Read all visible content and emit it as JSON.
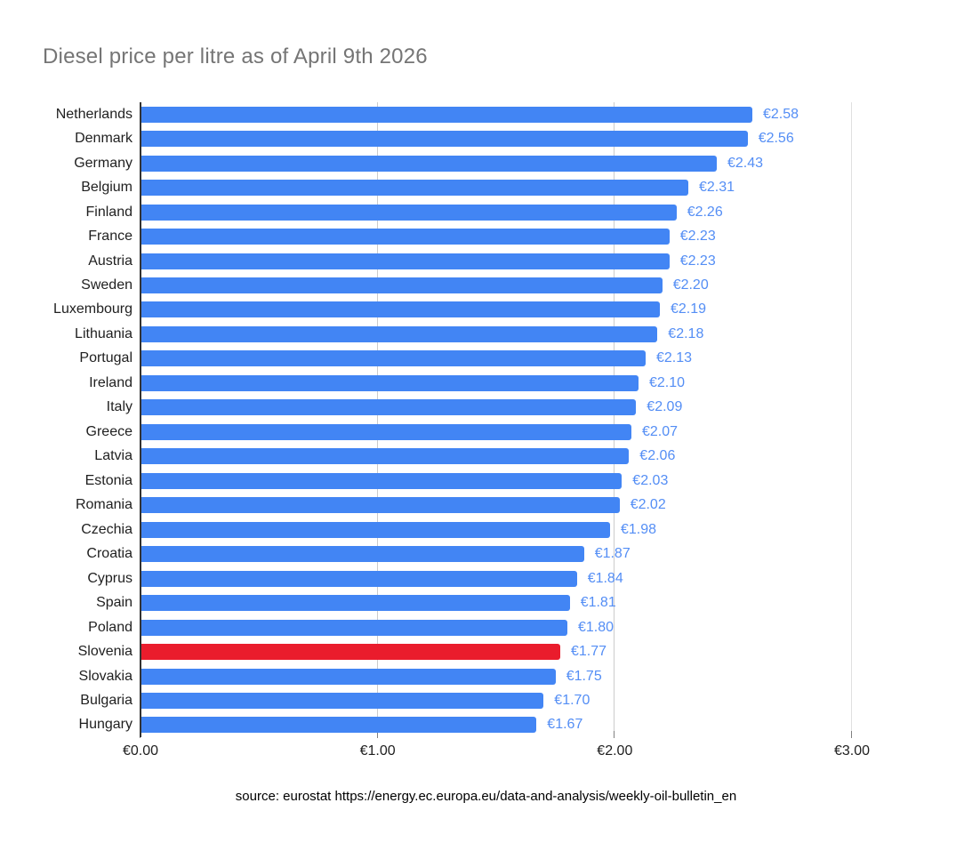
{
  "title": "Diesel price per litre as of April 9th 2026",
  "source_note": "source: eurostat https://energy.ec.europa.eu/data-and-analysis/weekly-oil-bulletin_en",
  "colors": {
    "bar": "#4285f4",
    "highlight": "#ea1c2c",
    "value_label": "#548ef5",
    "title": "#757575",
    "gridline": "#cccccc",
    "gridline_light": "#e0e0e0",
    "axis_line": "#333333"
  },
  "chart_data": {
    "type": "bar",
    "orientation": "horizontal",
    "title": "Diesel price per litre as of April 9th 2026",
    "xlabel": "",
    "ylabel": "",
    "xlim": [
      0,
      3
    ],
    "grid": true,
    "legend": "none",
    "categories": [
      "Netherlands",
      "Denmark",
      "Germany",
      "Belgium",
      "Finland",
      "France",
      "Austria",
      "Sweden",
      "Luxembourg",
      "Lithuania",
      "Portugal",
      "Ireland",
      "Italy",
      "Greece",
      "Latvia",
      "Estonia",
      "Romania",
      "Czechia",
      "Croatia",
      "Cyprus",
      "Spain",
      "Poland",
      "Slovenia",
      "Slovakia",
      "Bulgaria",
      "Hungary"
    ],
    "values": [
      2.58,
      2.56,
      2.43,
      2.31,
      2.26,
      2.23,
      2.23,
      2.2,
      2.19,
      2.18,
      2.13,
      2.1,
      2.09,
      2.07,
      2.06,
      2.03,
      2.02,
      1.98,
      1.87,
      1.84,
      1.81,
      1.8,
      1.77,
      1.75,
      1.7,
      1.67
    ],
    "value_labels": [
      "€2.58",
      "€2.56",
      "€2.43",
      "€2.31",
      "€2.26",
      "€2.23",
      "€2.23",
      "€2.20",
      "€2.19",
      "€2.18",
      "€2.13",
      "€2.10",
      "€2.09",
      "€2.07",
      "€2.06",
      "€2.03",
      "€2.02",
      "€1.98",
      "€1.87",
      "€1.84",
      "€1.81",
      "€1.80",
      "€1.77",
      "€1.75",
      "€1.70",
      "€1.67"
    ],
    "highlight_category": "Slovenia",
    "highlight_index": 22,
    "x_ticks": [
      {
        "value": 0,
        "label": "€0.00"
      },
      {
        "value": 1,
        "label": "€1.00"
      },
      {
        "value": 2,
        "label": "€2.00"
      },
      {
        "value": 3,
        "label": "€3.00"
      }
    ]
  }
}
